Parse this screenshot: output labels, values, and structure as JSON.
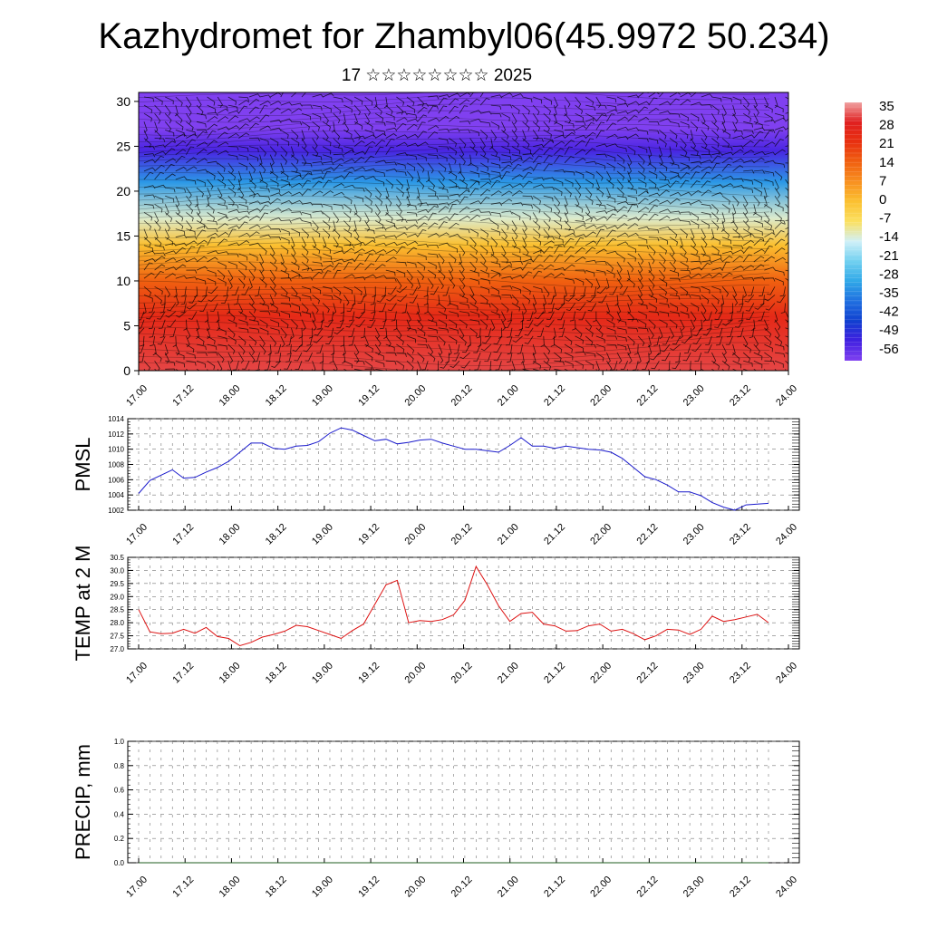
{
  "header": {
    "title": "Kazhydromet for Zhambyl06(45.9972 50.234)",
    "subtitle": "17 ☆☆☆☆☆☆☆☆ 2025"
  },
  "colors": {
    "pmsl_line": "#1a1acc",
    "temp_line": "#dd1111",
    "precip_line": "#1f5c1f",
    "grid": "#777777"
  },
  "chart_data": [
    {
      "id": "cross-section",
      "type": "heatmap",
      "title": "",
      "xlabel": "",
      "ylabel": "",
      "x_ticks": [
        "17.00",
        "17.12",
        "18.00",
        "18.12",
        "19.00",
        "19.12",
        "20.00",
        "20.12",
        "21.00",
        "21.12",
        "22.00",
        "22.12",
        "23.00",
        "23.12",
        "24.00"
      ],
      "y_ticks": [
        "0",
        "5",
        "10",
        "15",
        "20",
        "25",
        "30"
      ],
      "ylim": [
        0,
        31
      ],
      "overlay": "wind barbs",
      "colorbar": {
        "labels": [
          "35",
          "28",
          "21",
          "14",
          "7",
          "0",
          "-7",
          "-14",
          "-21",
          "-28",
          "-35",
          "-42",
          "-49",
          "-56"
        ],
        "colors": [
          "#f0a0a0",
          "#e02020",
          "#e83010",
          "#f06010",
          "#f89020",
          "#fbc030",
          "#fbe060",
          "#d0f0f8",
          "#70d0f0",
          "#30a8e8",
          "#2070e0",
          "#1040d0",
          "#4020e0",
          "#8040f0"
        ]
      },
      "profile": [
        {
          "height": 0,
          "value": 30
        },
        {
          "height": 6,
          "value": 24
        },
        {
          "height": 10,
          "value": 14
        },
        {
          "height": 14,
          "value": 0
        },
        {
          "height": 17,
          "value": -12
        },
        {
          "height": 21,
          "value": -30
        },
        {
          "height": 24.5,
          "value": -50
        },
        {
          "height": 27,
          "value": -56
        },
        {
          "height": 31,
          "value": -58
        }
      ]
    },
    {
      "id": "pmsl",
      "type": "line",
      "ylabel": "PMSL",
      "ylim": [
        1002,
        1014
      ],
      "y_ticks": [
        "1002",
        "1004",
        "1006",
        "1008",
        "1010",
        "1012",
        "1014"
      ],
      "x_ticks": [
        "17.00",
        "17.12",
        "18.00",
        "18.12",
        "19.00",
        "19.12",
        "20.00",
        "20.12",
        "21.00",
        "21.12",
        "22.00",
        "22.12",
        "23.00",
        "23.12",
        "24.00"
      ],
      "series": [
        {
          "values": [
            1004.2,
            1005.9,
            1006.6,
            1007.3,
            1006.2,
            1006.3,
            1007.0,
            1007.6,
            1008.4,
            1009.6,
            1010.8,
            1010.8,
            1010.1,
            1010.0,
            1010.4,
            1010.5,
            1011.0,
            1012.1,
            1012.8,
            1012.5,
            1011.8,
            1011.1,
            1011.3,
            1010.7,
            1010.9,
            1011.2,
            1011.3,
            1010.8,
            1010.4,
            1010.0,
            1010.0,
            1009.8,
            1009.6,
            1010.5,
            1011.5,
            1010.4,
            1010.4,
            1010.1,
            1010.4,
            1010.2,
            1010.0,
            1009.9,
            1009.6,
            1008.8,
            1007.6,
            1006.4,
            1006.0,
            1005.3,
            1004.4,
            1004.4,
            1003.9,
            1003.0,
            1002.4,
            1002.0,
            1002.7,
            1002.8,
            1002.9
          ]
        }
      ]
    },
    {
      "id": "temp2m",
      "type": "line",
      "ylabel": "TEMP at 2 M",
      "ylim": [
        27.0,
        30.5
      ],
      "y_ticks": [
        "27.0",
        "27.5",
        "28.0",
        "28.5",
        "29.0",
        "29.5",
        "30.0",
        "30.5"
      ],
      "x_ticks": [
        "17.00",
        "17.12",
        "18.00",
        "18.12",
        "19.00",
        "19.12",
        "20.00",
        "20.12",
        "21.00",
        "21.12",
        "22.00",
        "22.12",
        "23.00",
        "23.12",
        "24.00"
      ],
      "series": [
        {
          "values": [
            28.5,
            27.65,
            27.58,
            27.6,
            27.75,
            27.6,
            27.82,
            27.47,
            27.4,
            27.12,
            27.25,
            27.45,
            27.55,
            27.68,
            27.9,
            27.85,
            27.7,
            27.55,
            27.4,
            27.7,
            27.95,
            28.7,
            29.45,
            29.62,
            28.0,
            28.08,
            28.05,
            28.12,
            28.3,
            28.85,
            30.15,
            29.45,
            28.65,
            28.05,
            28.35,
            28.4,
            27.95,
            27.88,
            27.68,
            27.7,
            27.88,
            27.95,
            27.68,
            27.75,
            27.58,
            27.35,
            27.5,
            27.75,
            27.72,
            27.55,
            27.75,
            28.25,
            28.05,
            28.12,
            28.22,
            28.32,
            28.0
          ]
        }
      ]
    },
    {
      "id": "precip",
      "type": "line",
      "ylabel": "PRECIP, mm",
      "ylim": [
        0,
        1.0
      ],
      "y_ticks": [
        "0.0",
        "0.2",
        "0.4",
        "0.6",
        "0.8",
        "1.0"
      ],
      "x_ticks": [
        "17.00",
        "17.12",
        "18.00",
        "18.12",
        "19.00",
        "19.12",
        "20.00",
        "20.12",
        "21.00",
        "21.12",
        "22.00",
        "22.12",
        "23.00",
        "23.12",
        "24.00"
      ],
      "series": [
        {
          "values": [
            0,
            0,
            0,
            0,
            0,
            0,
            0,
            0,
            0,
            0,
            0,
            0,
            0,
            0,
            0,
            0,
            0,
            0,
            0,
            0,
            0,
            0,
            0,
            0,
            0,
            0,
            0,
            0,
            0,
            0,
            0,
            0,
            0,
            0,
            0,
            0,
            0,
            0,
            0,
            0,
            0,
            0,
            0,
            0,
            0,
            0,
            0,
            0,
            0,
            0,
            0,
            0,
            0,
            0,
            0,
            0,
            0
          ]
        }
      ]
    }
  ]
}
